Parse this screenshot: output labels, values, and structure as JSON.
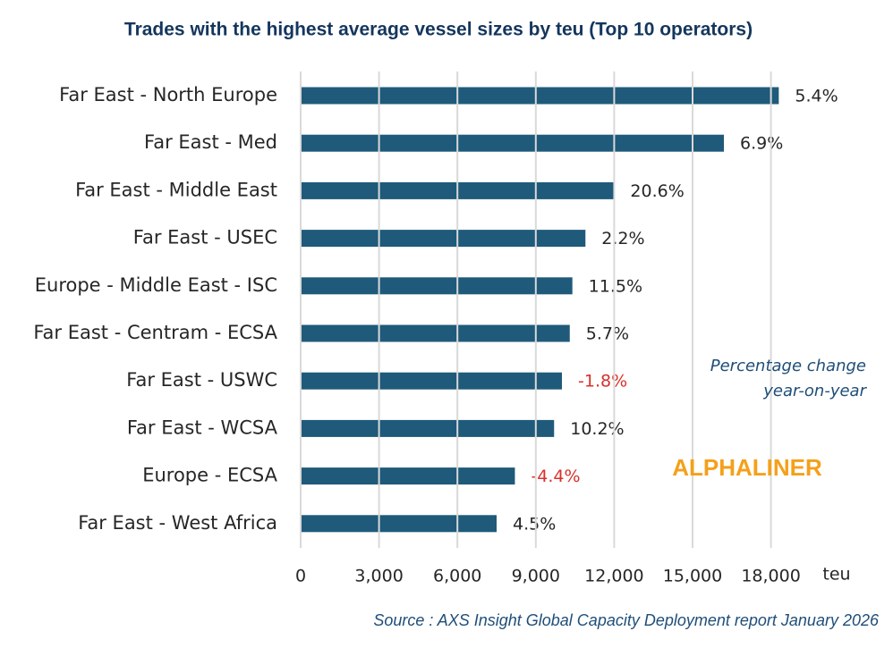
{
  "chart_data": {
    "type": "hbar",
    "title": "Trades with the highest average vessel sizes by teu (Top 10 operators)",
    "categories": [
      "Far East - North Europe",
      "Far East - Med",
      "Far East - Middle East",
      "Far East - USEC",
      "Europe - Middle East - ISC",
      "Far East - Centram - ECSA",
      "Far East - USWC",
      "Far East - WCSA",
      "Europe - ECSA",
      "Far East - West Africa"
    ],
    "values": [
      18300,
      16200,
      12000,
      10900,
      10400,
      10300,
      10000,
      9700,
      8200,
      7500
    ],
    "color": "#1f5a7a",
    "yoy_change": {
      "values": [
        5.4,
        6.9,
        20.6,
        2.2,
        11.5,
        5.7,
        -1.8,
        10.2,
        -4.4,
        4.5
      ],
      "value_labels": [
        "5.4%",
        "6.9%",
        "20.6%",
        "2.2%",
        "11.5%",
        "5.7%",
        "-1.8%",
        "10.2%",
        "-4.4%",
        "4.5%"
      ],
      "positive_color": "#262626",
      "negative_color": "#d9302b"
    },
    "xlim": [
      0,
      20000
    ],
    "xticks": [
      0,
      {
        "value": 3000,
        "label": "3,000"
      },
      {
        "value": 6000,
        "label": "6,000"
      },
      {
        "value": 9000,
        "label": "9,000"
      },
      {
        "value": 12000,
        "label": "12,000"
      },
      {
        "value": 15000,
        "label": "15,000"
      },
      {
        "value": 18000,
        "label": "18,000"
      }
    ],
    "xlabel": "teu",
    "grid": true,
    "annotation": [
      "Percentage change",
      "year-on-year"
    ],
    "brand": "ALPHALINER",
    "source": "Source : AXS Insight Global Capacity  Deployment report January 2026"
  }
}
